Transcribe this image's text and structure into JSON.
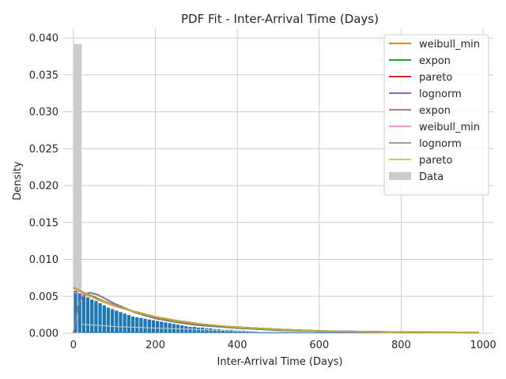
{
  "chart_data": {
    "type": "line",
    "title": "PDF Fit - Inter-Arrival Time (Days)",
    "xlabel": "Inter-Arrival Time (Days)",
    "ylabel": "Density",
    "xlim": [
      -25,
      1025
    ],
    "ylim": [
      0,
      0.0413
    ],
    "xticks": [
      0,
      200,
      400,
      600,
      800,
      1000
    ],
    "xtick_labels": [
      "0",
      "200",
      "400",
      "600",
      "800",
      "1000"
    ],
    "yticks": [
      0,
      0.005,
      0.01,
      0.015,
      0.02,
      0.025,
      0.03,
      0.035,
      0.04
    ],
    "ytick_labels": [
      "0.000",
      "0.005",
      "0.010",
      "0.015",
      "0.020",
      "0.025",
      "0.030",
      "0.035",
      "0.040"
    ],
    "grid": true,
    "legend_position": "top-right",
    "data_histogram": {
      "name": "Data",
      "color": "#cccccc",
      "bins": [
        [
          0,
          20,
          0.0392
        ]
      ]
    },
    "blue_histogram": {
      "color": "#1f77b4",
      "bin_width": 10,
      "values": [
        0.0058,
        0.0055,
        0.0052,
        0.0049,
        0.0046,
        0.0044,
        0.0041,
        0.0038,
        0.0035,
        0.0033,
        0.0031,
        0.0029,
        0.0027,
        0.0025,
        0.0023,
        0.0022,
        0.0021,
        0.002,
        0.0019,
        0.0018,
        0.0017,
        0.0016,
        0.0015,
        0.0014,
        0.0013,
        0.0012,
        0.0011,
        0.001,
        0.0009,
        0.0009,
        0.0008,
        0.0008,
        0.0007,
        0.0007,
        0.0006,
        0.0006,
        0.0005,
        0.0005,
        0.0005,
        0.0004,
        0.0004,
        0.0004,
        0.0003,
        0.0003,
        0.0003
      ]
    },
    "floor_lines": [
      {
        "color": "#cccccc",
        "points": [
          [
            20,
            0.0012
          ],
          [
            50,
            0.0011
          ],
          [
            80,
            0.001
          ],
          [
            100,
            0.0009
          ],
          [
            150,
            0.0008
          ],
          [
            200,
            0.0007
          ],
          [
            300,
            0.0005
          ],
          [
            400,
            0.0003
          ],
          [
            450,
            0.0002
          ]
        ]
      },
      {
        "color": "#1f77b4",
        "points": [
          [
            20,
            0.0001
          ],
          [
            400,
            0.0001
          ],
          [
            990,
            0.0001
          ]
        ]
      }
    ],
    "series": [
      {
        "name": "weibull_min",
        "color": "#ff7f0e",
        "width": 2,
        "points": [
          [
            0,
            0.0062
          ],
          [
            25,
            0.0055
          ],
          [
            50,
            0.0049
          ],
          [
            75,
            0.0043
          ],
          [
            100,
            0.0038
          ],
          [
            150,
            0.0029
          ],
          [
            200,
            0.0022
          ],
          [
            250,
            0.0017
          ],
          [
            300,
            0.0013
          ],
          [
            350,
            0.001
          ],
          [
            400,
            0.0008
          ],
          [
            500,
            0.0005
          ],
          [
            600,
            0.0003
          ],
          [
            700,
            0.0002
          ],
          [
            800,
            0.00015
          ],
          [
            990,
            0.0001
          ]
        ]
      },
      {
        "name": "expon",
        "color": "#2ca02c",
        "width": 2,
        "points": [
          [
            0,
            0.0062
          ],
          [
            25,
            0.0055
          ],
          [
            50,
            0.0049
          ],
          [
            75,
            0.0043
          ],
          [
            100,
            0.0038
          ],
          [
            150,
            0.0029
          ],
          [
            200,
            0.0022
          ],
          [
            250,
            0.0017
          ],
          [
            300,
            0.0013
          ],
          [
            350,
            0.001
          ],
          [
            400,
            0.0008
          ],
          [
            500,
            0.0005
          ],
          [
            600,
            0.0003
          ],
          [
            700,
            0.0002
          ],
          [
            800,
            0.00015
          ],
          [
            990,
            0.0001
          ]
        ]
      },
      {
        "name": "pareto",
        "color": "#d62728",
        "width": 2,
        "points": [
          [
            0,
            0.0062
          ],
          [
            25,
            0.0055
          ],
          [
            50,
            0.0048
          ],
          [
            75,
            0.0042
          ],
          [
            100,
            0.0037
          ],
          [
            150,
            0.0029
          ],
          [
            200,
            0.0022
          ],
          [
            250,
            0.0017
          ],
          [
            300,
            0.0013
          ],
          [
            350,
            0.001
          ],
          [
            400,
            0.0008
          ],
          [
            500,
            0.0005
          ],
          [
            600,
            0.0003
          ],
          [
            700,
            0.0002
          ],
          [
            800,
            0.00015
          ],
          [
            990,
            0.0001
          ]
        ]
      },
      {
        "name": "lognorm",
        "color": "#9467bd",
        "width": 2,
        "points": [
          [
            0,
            0.0
          ],
          [
            5,
            0.0015
          ],
          [
            10,
            0.0035
          ],
          [
            20,
            0.0048
          ],
          [
            30,
            0.0053
          ],
          [
            40,
            0.0055
          ],
          [
            60,
            0.0052
          ],
          [
            80,
            0.0046
          ],
          [
            100,
            0.004
          ],
          [
            150,
            0.0028
          ],
          [
            200,
            0.002
          ],
          [
            250,
            0.0015
          ],
          [
            300,
            0.0011
          ],
          [
            400,
            0.0007
          ],
          [
            500,
            0.0004
          ],
          [
            600,
            0.0003
          ],
          [
            800,
            0.00015
          ],
          [
            990,
            0.0001
          ]
        ]
      },
      {
        "name": "expon",
        "color": "#8c564b",
        "width": 1.5,
        "points": [
          [
            0,
            0.0062
          ],
          [
            25,
            0.0055
          ],
          [
            50,
            0.0049
          ],
          [
            75,
            0.0043
          ],
          [
            100,
            0.0038
          ],
          [
            150,
            0.0029
          ],
          [
            200,
            0.0022
          ],
          [
            250,
            0.0017
          ],
          [
            300,
            0.0013
          ],
          [
            400,
            0.0008
          ],
          [
            500,
            0.0005
          ],
          [
            600,
            0.0003
          ],
          [
            700,
            0.00025
          ],
          [
            800,
            0.00015
          ],
          [
            990,
            0.0001
          ]
        ]
      },
      {
        "name": "weibull_min",
        "color": "#e377c2",
        "width": 1.5,
        "points": [
          [
            2,
            0.0055
          ],
          [
            25,
            0.0053
          ],
          [
            50,
            0.0048
          ],
          [
            75,
            0.0043
          ],
          [
            100,
            0.0038
          ],
          [
            150,
            0.0029
          ],
          [
            200,
            0.0022
          ],
          [
            250,
            0.0017
          ],
          [
            300,
            0.0013
          ],
          [
            400,
            0.0008
          ],
          [
            500,
            0.0005
          ],
          [
            600,
            0.0003
          ],
          [
            800,
            0.00015
          ],
          [
            990,
            0.0001
          ]
        ]
      },
      {
        "name": "lognorm",
        "color": "#7f7f7f",
        "width": 1.5,
        "points": [
          [
            0,
            0.0
          ],
          [
            5,
            0.0015
          ],
          [
            10,
            0.0035
          ],
          [
            20,
            0.0048
          ],
          [
            30,
            0.0053
          ],
          [
            40,
            0.0055
          ],
          [
            60,
            0.0052
          ],
          [
            80,
            0.0046
          ],
          [
            100,
            0.004
          ],
          [
            150,
            0.0028
          ],
          [
            200,
            0.002
          ],
          [
            250,
            0.0015
          ],
          [
            300,
            0.0011
          ],
          [
            400,
            0.0007
          ],
          [
            500,
            0.0004
          ],
          [
            600,
            0.0003
          ],
          [
            800,
            0.00015
          ],
          [
            990,
            0.0001
          ]
        ]
      },
      {
        "name": "pareto",
        "color": "#bcbd22",
        "width": 1.5,
        "points": [
          [
            0,
            0.0062
          ],
          [
            25,
            0.0055
          ],
          [
            50,
            0.0048
          ],
          [
            75,
            0.0042
          ],
          [
            100,
            0.0037
          ],
          [
            150,
            0.0029
          ],
          [
            200,
            0.0022
          ],
          [
            250,
            0.0017
          ],
          [
            300,
            0.0013
          ],
          [
            400,
            0.0008
          ],
          [
            500,
            0.0005
          ],
          [
            600,
            0.0003
          ],
          [
            700,
            0.0002
          ],
          [
            800,
            0.00015
          ],
          [
            990,
            0.0001
          ]
        ]
      }
    ]
  }
}
